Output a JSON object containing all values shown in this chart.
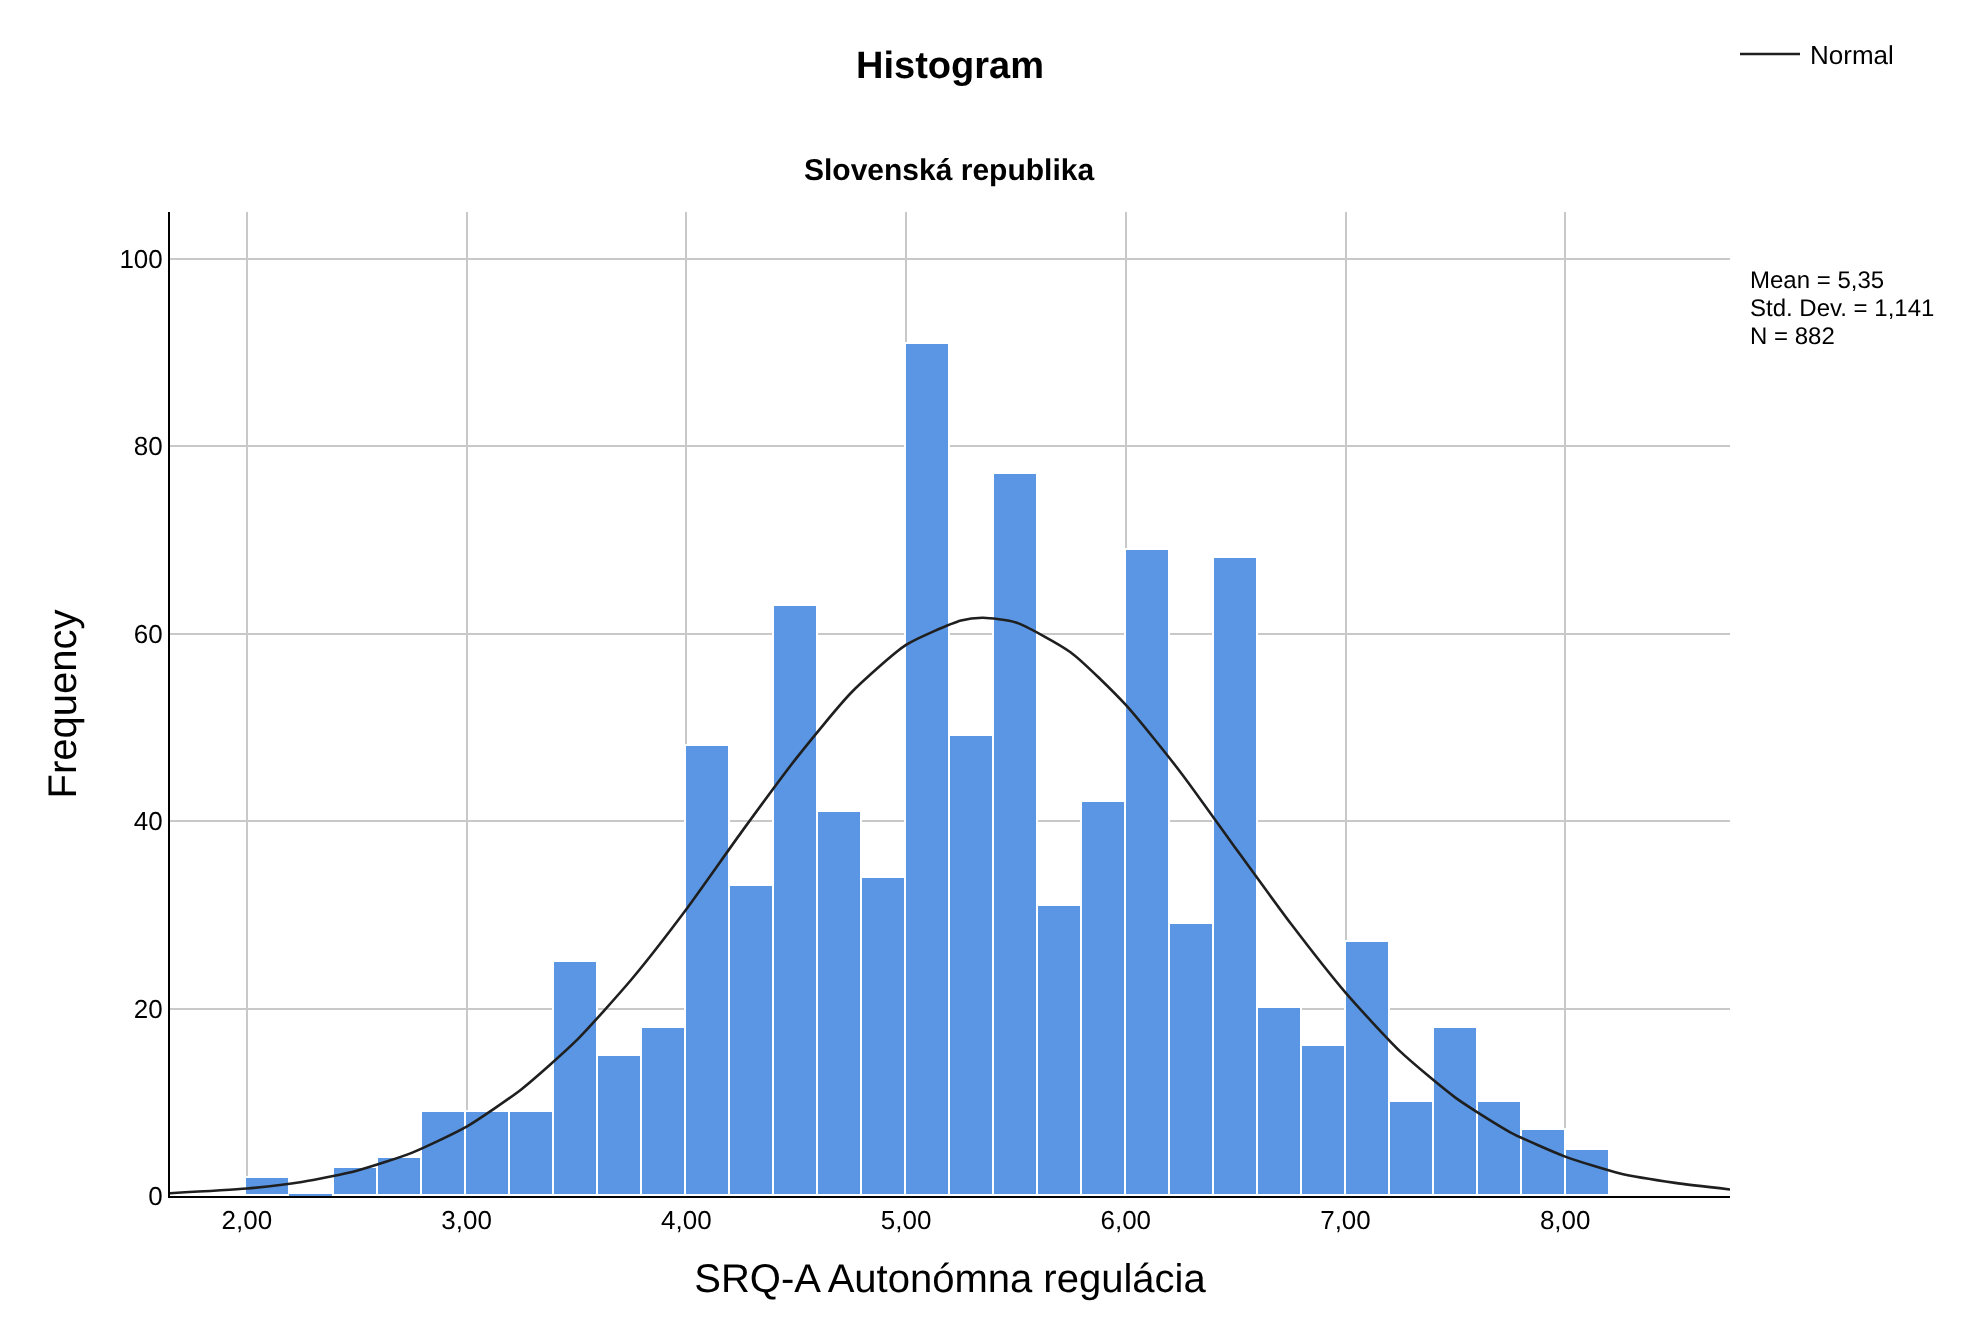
{
  "chart_data": {
    "type": "histogram",
    "title": "Histogram",
    "subtitle": "Slovenská republika",
    "xlabel": "SRQ-A Autonómna regulácia",
    "ylabel": "Frequency",
    "bins": [
      2.0,
      2.2,
      2.4,
      2.6,
      2.8,
      3.0,
      3.2,
      3.4,
      3.6,
      3.8,
      4.0,
      4.2,
      4.4,
      4.6,
      4.8,
      5.0,
      5.2,
      5.4,
      5.6,
      5.8,
      6.0,
      6.2,
      6.4,
      6.6,
      6.8,
      7.0,
      7.2,
      7.4,
      7.6,
      7.8,
      8.0,
      8.2
    ],
    "values": [
      2,
      0,
      3,
      4,
      9,
      9,
      9,
      25,
      15,
      18,
      48,
      33,
      63,
      41,
      34,
      91,
      49,
      77,
      31,
      42,
      69,
      29,
      68,
      20,
      16,
      27,
      10,
      18,
      10,
      7,
      5
    ],
    "color": "#5a96e3",
    "series": [
      {
        "name": "Normal",
        "type": "line",
        "color": "#1f1f1f",
        "x": [
          1.65,
          2.0,
          2.25,
          2.5,
          2.75,
          3.0,
          3.25,
          3.5,
          3.75,
          4.0,
          4.25,
          4.5,
          4.75,
          5.0,
          5.25,
          5.35,
          5.5,
          5.75,
          6.0,
          6.25,
          6.5,
          6.75,
          7.0,
          7.25,
          7.5,
          7.75,
          8.0,
          8.25,
          8.5,
          8.75
        ],
        "values": [
          0.3,
          0.8,
          1.5,
          2.7,
          4.6,
          7.4,
          11.4,
          16.6,
          23.1,
          30.6,
          38.8,
          46.7,
          53.7,
          58.8,
          61.4,
          61.7,
          61.2,
          58.0,
          52.4,
          45.2,
          37.1,
          29.1,
          21.7,
          15.4,
          10.5,
          6.8,
          4.2,
          2.4,
          1.4,
          0.7
        ]
      }
    ],
    "xlim": [
      1.65,
      8.75
    ],
    "ylim": [
      0,
      105
    ],
    "xticks": [
      {
        "value": 2,
        "label": "2,00"
      },
      {
        "value": 3,
        "label": "3,00"
      },
      {
        "value": 4,
        "label": "4,00"
      },
      {
        "value": 5,
        "label": "5,00"
      },
      {
        "value": 6,
        "label": "6,00"
      },
      {
        "value": 7,
        "label": "7,00"
      },
      {
        "value": 8,
        "label": "8,00"
      }
    ],
    "yticks": [
      0,
      20,
      40,
      60,
      80,
      100
    ],
    "grid": true,
    "legend": "top right",
    "line_style": "solid",
    "marker": "none",
    "annotations": [
      "Mean = 5,35",
      "Std. Dev. = 1,141",
      "N = 882"
    ]
  }
}
